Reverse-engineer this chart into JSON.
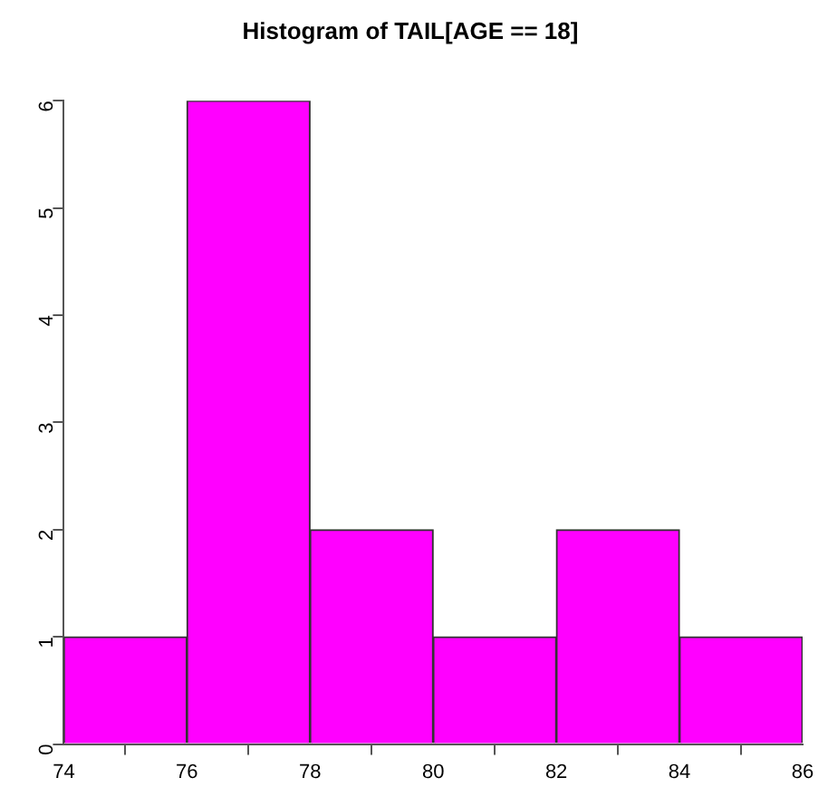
{
  "chart_data": {
    "type": "histogram",
    "title": "Histogram of TAIL[AGE == 18]",
    "bins": [
      74,
      76,
      78,
      80,
      82,
      84,
      86
    ],
    "values": [
      1,
      6,
      2,
      1,
      2,
      1
    ],
    "color": "#ff00ff",
    "xlim": [
      74,
      86
    ],
    "xticks": [
      74,
      76,
      78,
      80,
      82,
      84,
      86
    ],
    "ylim": [
      0,
      6
    ],
    "yticks": [
      0,
      1,
      2,
      3,
      4,
      5,
      6
    ],
    "grid": false,
    "legend": false
  }
}
